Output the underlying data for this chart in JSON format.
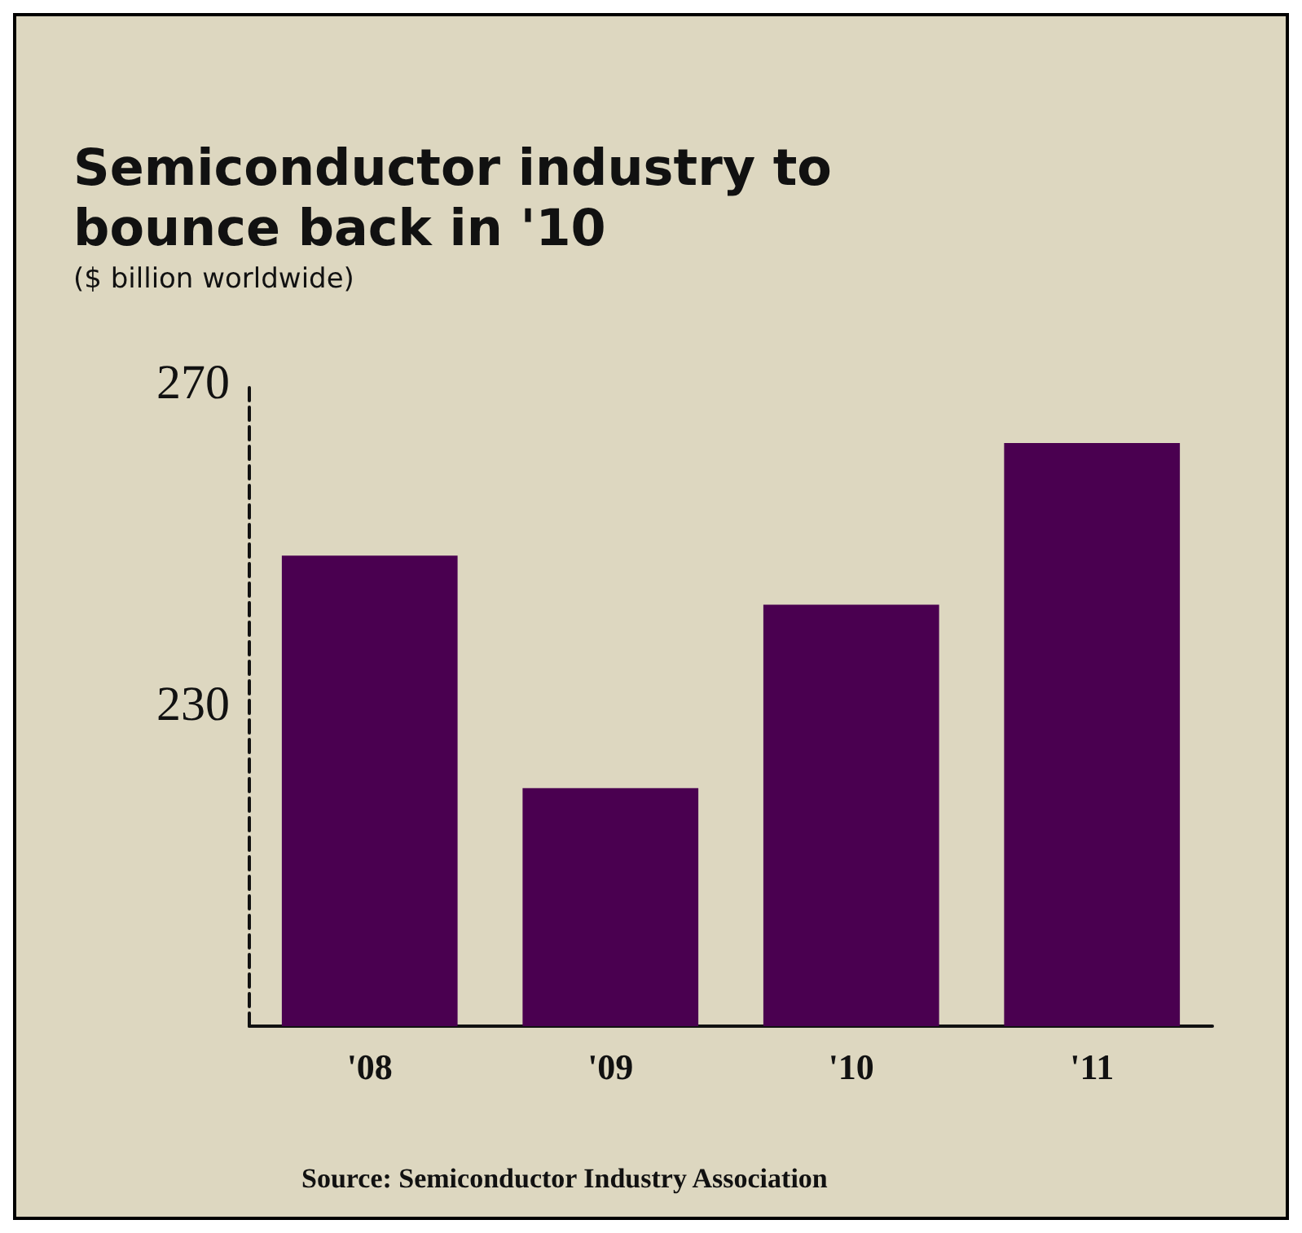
{
  "chart_data": {
    "type": "bar",
    "title": "Semiconductor industry to\nbounce back in '10",
    "subtitle": "($ billion worldwide)",
    "categories": [
      "'08",
      "'09",
      "'10",
      "'11"
    ],
    "values": [
      248.5,
      219.6,
      242.4,
      262.5
    ],
    "color": "#4a0050",
    "ylim": [
      190,
      270
    ],
    "yticks": [
      230,
      270
    ],
    "grid": false,
    "annotations": [
      "Source: Semiconductor Industry Association"
    ]
  }
}
